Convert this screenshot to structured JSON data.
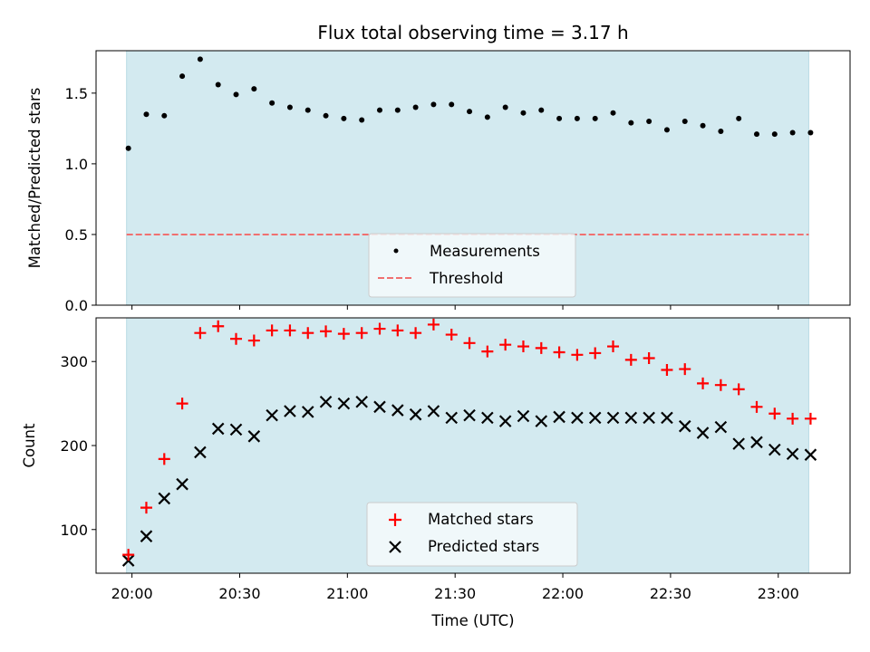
{
  "chart_data": {
    "type": "scatter",
    "title": "Flux total observing time = 3.17 h",
    "xlabel": "Time (UTC)",
    "x_ticks": [
      "20:00",
      "20:30",
      "21:00",
      "21:30",
      "22:00",
      "22:30",
      "23:00"
    ],
    "x_tick_minutes": [
      0,
      30,
      60,
      90,
      120,
      150,
      180
    ],
    "xlim_minutes": [
      -10,
      200
    ],
    "shaded_span_minutes": [
      -1.5,
      188.5
    ],
    "shade_color": "#d3eaf0",
    "times": [
      "19:59",
      "20:04",
      "20:09",
      "20:14",
      "20:19",
      "20:24",
      "20:29",
      "20:34",
      "20:39",
      "20:44",
      "20:49",
      "20:54",
      "20:59",
      "21:04",
      "21:09",
      "21:14",
      "21:19",
      "21:24",
      "21:29",
      "21:34",
      "21:39",
      "21:44",
      "21:49",
      "21:54",
      "21:59",
      "22:04",
      "22:09",
      "22:14",
      "22:19",
      "22:24",
      "22:29",
      "22:34",
      "22:39",
      "22:44",
      "22:49",
      "22:54",
      "22:59",
      "23:04",
      "23:09"
    ],
    "top_panel": {
      "ylabel": "Matched/Predicted stars",
      "ylim": [
        0,
        1.8
      ],
      "y_ticks": [
        "0.0",
        "0.5",
        "1.0",
        "1.5"
      ],
      "y_tick_values": [
        0,
        0.5,
        1.0,
        1.5
      ],
      "threshold": 0.5,
      "threshold_color": "#f07070",
      "legend_position": "lower-center",
      "series": [
        {
          "name": "Measurements",
          "color": "#000000",
          "marker": "dot",
          "values": [
            1.11,
            1.35,
            1.34,
            1.62,
            1.74,
            1.56,
            1.49,
            1.53,
            1.43,
            1.4,
            1.38,
            1.34,
            1.32,
            1.31,
            1.38,
            1.38,
            1.4,
            1.42,
            1.42,
            1.37,
            1.33,
            1.4,
            1.36,
            1.38,
            1.32,
            1.32,
            1.32,
            1.36,
            1.29,
            1.3,
            1.24,
            1.3,
            1.27,
            1.23,
            1.32,
            1.21,
            1.21,
            1.22,
            1.22
          ]
        },
        {
          "name": "Threshold",
          "color": "#f07070",
          "marker": "dashed-line"
        }
      ]
    },
    "bottom_panel": {
      "ylabel": "Count",
      "ylim": [
        48,
        352
      ],
      "y_ticks": [
        "100",
        "200",
        "300"
      ],
      "y_tick_values": [
        100,
        200,
        300
      ],
      "legend_position": "lower-center",
      "series": [
        {
          "name": "Matched stars",
          "color": "#ff0000",
          "marker": "plus",
          "values": [
            70,
            126,
            184,
            250,
            334,
            342,
            327,
            325,
            337,
            337,
            334,
            336,
            333,
            334,
            339,
            337,
            334,
            344,
            332,
            322,
            312,
            320,
            318,
            316,
            311,
            308,
            310,
            318,
            302,
            304,
            290,
            291,
            274,
            272,
            267,
            246,
            238,
            232,
            232
          ]
        },
        {
          "name": "Predicted stars",
          "color": "#000000",
          "marker": "cross",
          "values": [
            63,
            92,
            137,
            154,
            192,
            220,
            219,
            211,
            236,
            241,
            240,
            252,
            250,
            252,
            246,
            242,
            237,
            241,
            233,
            236,
            233,
            229,
            235,
            229,
            234,
            233,
            233,
            233,
            233,
            233,
            233,
            223,
            215,
            222,
            202,
            204,
            195,
            190,
            189
          ]
        }
      ]
    }
  }
}
